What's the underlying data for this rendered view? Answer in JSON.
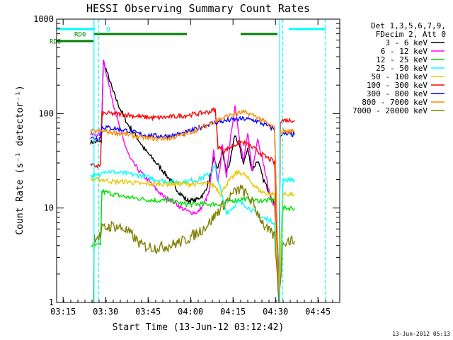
{
  "chart_data": {
    "type": "line",
    "title": "HESSI Observing Summary Count Rates",
    "xlabel": "Start Time (13-Jun-12 03:12:42)",
    "ylabel": "Count Rate (s⁻¹ detector⁻¹)",
    "y_scale": "log",
    "ylim": [
      1,
      1000
    ],
    "x_unit": "minutes since 03:12:42",
    "xlim": [
      0,
      100
    ],
    "x_ticks": [
      {
        "label": "03:15",
        "x": 2.3
      },
      {
        "label": "03:30",
        "x": 17.3
      },
      {
        "label": "03:45",
        "x": 32.3
      },
      {
        "label": "04:00",
        "x": 47.3
      },
      {
        "label": "04:15",
        "x": 62.3
      },
      {
        "label": "04:30",
        "x": 77.3
      },
      {
        "label": "04:45",
        "x": 92.3
      }
    ],
    "y_ticks": [
      {
        "label": "1",
        "y": 1
      },
      {
        "label": "10",
        "y": 10
      },
      {
        "label": "100",
        "y": 100
      },
      {
        "label": "1000",
        "y": 1000
      }
    ],
    "legend": {
      "position": "right",
      "header": [
        "Det 1,3,5,6,7,9,",
        "FDecim 2, Att 0"
      ]
    },
    "series": [
      {
        "name": "3 - 6 keV",
        "color": "#000000",
        "points": [
          [
            12,
            50
          ],
          [
            15.8,
            50
          ],
          [
            16.5,
            360
          ],
          [
            18,
            260
          ],
          [
            20,
            170
          ],
          [
            22,
            120
          ],
          [
            25,
            78
          ],
          [
            28,
            58
          ],
          [
            31,
            42
          ],
          [
            34,
            33
          ],
          [
            37,
            26
          ],
          [
            40,
            20
          ],
          [
            43,
            15
          ],
          [
            46,
            12
          ],
          [
            49,
            12
          ],
          [
            52,
            14
          ],
          [
            54,
            20
          ],
          [
            55.5,
            32
          ],
          [
            57,
            26
          ],
          [
            58.5,
            40
          ],
          [
            60,
            24
          ],
          [
            61.5,
            33
          ],
          [
            63,
            60
          ],
          [
            64.5,
            45
          ],
          [
            66,
            30
          ],
          [
            67.5,
            42
          ],
          [
            69,
            25
          ],
          [
            71,
            32
          ],
          [
            73,
            20
          ],
          [
            75,
            15
          ],
          [
            77.5,
            10
          ],
          [
            78.5,
            1
          ]
        ]
      },
      {
        "name": "6 - 12 keV",
        "color": "#ff00ff",
        "points": [
          [
            12,
            60
          ],
          [
            15.8,
            60
          ],
          [
            16.5,
            380
          ],
          [
            18,
            230
          ],
          [
            20,
            130
          ],
          [
            22,
            75
          ],
          [
            24,
            48
          ],
          [
            26,
            33
          ],
          [
            29,
            25
          ],
          [
            32,
            20
          ],
          [
            35,
            16
          ],
          [
            38,
            13
          ],
          [
            41,
            12
          ],
          [
            44,
            10
          ],
          [
            47,
            9
          ],
          [
            50,
            9
          ],
          [
            52,
            11
          ],
          [
            54,
            15
          ],
          [
            55.5,
            40
          ],
          [
            57,
            18
          ],
          [
            58.5,
            45
          ],
          [
            60,
            22
          ],
          [
            61.5,
            60
          ],
          [
            63,
            120
          ],
          [
            64.5,
            55
          ],
          [
            66,
            30
          ],
          [
            67.5,
            65
          ],
          [
            69,
            25
          ],
          [
            71,
            55
          ],
          [
            73,
            30
          ],
          [
            75,
            15
          ],
          [
            77,
            10
          ],
          [
            78.5,
            1
          ]
        ]
      },
      {
        "name": "12 - 25 keV",
        "color": "#00e000",
        "points": [
          [
            12,
            4
          ],
          [
            15.5,
            4
          ],
          [
            16,
            15
          ],
          [
            20,
            14
          ],
          [
            25,
            13
          ],
          [
            30,
            12.5
          ],
          [
            35,
            12
          ],
          [
            40,
            12
          ],
          [
            45,
            11
          ],
          [
            50,
            11
          ],
          [
            55,
            11
          ],
          [
            58,
            11
          ],
          [
            62,
            12
          ],
          [
            66,
            12.5
          ],
          [
            70,
            12
          ],
          [
            74,
            12
          ],
          [
            77,
            12.5
          ],
          [
            78.5,
            1
          ],
          [
            80,
            10
          ],
          [
            84,
            10
          ]
        ]
      },
      {
        "name": "25 - 50 keV",
        "color": "#00ffff",
        "points": [
          [
            12,
            22
          ],
          [
            15.5,
            22
          ],
          [
            16,
            25
          ],
          [
            20,
            24
          ],
          [
            25,
            23
          ],
          [
            30,
            22
          ],
          [
            35,
            20
          ],
          [
            40,
            19
          ],
          [
            45,
            19
          ],
          [
            50,
            20
          ],
          [
            54,
            23
          ],
          [
            56,
            28
          ],
          [
            58,
            15
          ],
          [
            60,
            9
          ],
          [
            62,
            10
          ],
          [
            64,
            11.5
          ],
          [
            66,
            11
          ],
          [
            68,
            10
          ],
          [
            70,
            9
          ],
          [
            72,
            8
          ],
          [
            75,
            7.5
          ],
          [
            77,
            7
          ],
          [
            78.5,
            1
          ],
          [
            80,
            20
          ],
          [
            84,
            20
          ]
        ]
      },
      {
        "name": "50 - 100 keV",
        "color": "#e8c800",
        "points": [
          [
            12,
            20
          ],
          [
            15.5,
            20
          ],
          [
            16,
            20
          ],
          [
            20,
            19
          ],
          [
            25,
            19
          ],
          [
            30,
            18
          ],
          [
            35,
            18
          ],
          [
            40,
            18
          ],
          [
            45,
            18
          ],
          [
            50,
            18
          ],
          [
            54,
            18
          ],
          [
            56,
            17
          ],
          [
            58,
            14
          ],
          [
            60,
            18
          ],
          [
            62,
            21
          ],
          [
            64,
            24
          ],
          [
            66,
            23
          ],
          [
            68,
            20
          ],
          [
            70,
            17
          ],
          [
            72,
            15
          ],
          [
            75,
            14
          ],
          [
            77,
            14
          ],
          [
            78.5,
            1
          ],
          [
            80,
            14
          ],
          [
            84,
            14
          ]
        ]
      },
      {
        "name": "100 - 300 keV",
        "color": "#ff0000",
        "points": [
          [
            12,
            28
          ],
          [
            15.5,
            28
          ],
          [
            16,
            100
          ],
          [
            20,
            100
          ],
          [
            25,
            97
          ],
          [
            30,
            92
          ],
          [
            35,
            90
          ],
          [
            40,
            92
          ],
          [
            45,
            95
          ],
          [
            50,
            100
          ],
          [
            54,
            105
          ],
          [
            56,
            110
          ],
          [
            57,
            45
          ],
          [
            59,
            40
          ],
          [
            62,
            45
          ],
          [
            65,
            50
          ],
          [
            67,
            48
          ],
          [
            70,
            42
          ],
          [
            73,
            36
          ],
          [
            76,
            32
          ],
          [
            77,
            30
          ],
          [
            78.5,
            1
          ],
          [
            79,
            85
          ],
          [
            84,
            85
          ]
        ]
      },
      {
        "name": "300 - 800 keV",
        "color": "#0000ff",
        "points": [
          [
            12,
            55
          ],
          [
            15.5,
            55
          ],
          [
            16,
            72
          ],
          [
            20,
            70
          ],
          [
            25,
            66
          ],
          [
            30,
            60
          ],
          [
            35,
            58
          ],
          [
            40,
            58
          ],
          [
            45,
            62
          ],
          [
            50,
            70
          ],
          [
            54,
            78
          ],
          [
            58,
            82
          ],
          [
            62,
            86
          ],
          [
            66,
            88
          ],
          [
            70,
            85
          ],
          [
            74,
            75
          ],
          [
            77,
            68
          ],
          [
            78.5,
            1
          ],
          [
            79,
            60
          ],
          [
            84,
            60
          ]
        ]
      },
      {
        "name": "800 - 7000 keV",
        "color": "#ff8800",
        "points": [
          [
            12,
            65
          ],
          [
            15.5,
            65
          ],
          [
            16,
            65
          ],
          [
            20,
            63
          ],
          [
            25,
            60
          ],
          [
            30,
            56
          ],
          [
            35,
            54
          ],
          [
            40,
            55
          ],
          [
            45,
            60
          ],
          [
            50,
            68
          ],
          [
            54,
            78
          ],
          [
            58,
            88
          ],
          [
            62,
            98
          ],
          [
            66,
            103
          ],
          [
            70,
            95
          ],
          [
            74,
            80
          ],
          [
            77,
            70
          ],
          [
            78.5,
            1
          ],
          [
            79,
            65
          ],
          [
            84,
            65
          ]
        ]
      },
      {
        "name": "7000 - 20000 keV",
        "color": "#808000",
        "points": [
          [
            12,
            1
          ],
          [
            13,
            1
          ],
          [
            13.3,
            5
          ],
          [
            15.5,
            5
          ],
          [
            16,
            6
          ],
          [
            20,
            6.5
          ],
          [
            24,
            6
          ],
          [
            27,
            5
          ],
          [
            30,
            4
          ],
          [
            35,
            3.8
          ],
          [
            40,
            4
          ],
          [
            45,
            4.5
          ],
          [
            50,
            5.5
          ],
          [
            54,
            7
          ],
          [
            58,
            10
          ],
          [
            62,
            14
          ],
          [
            65,
            16
          ],
          [
            68,
            13
          ],
          [
            71,
            9
          ],
          [
            74,
            6
          ],
          [
            77,
            5
          ],
          [
            78.5,
            1
          ],
          [
            80,
            4.5
          ],
          [
            84,
            4.5
          ]
        ]
      }
    ],
    "flags": [
      {
        "name": "RD0",
        "color": "#008000",
        "segments": [
          [
            13,
            46
          ],
          [
            65,
            78
          ]
        ]
      },
      {
        "name": "RD6",
        "color": "#008000",
        "segments": [
          [
            0,
            13
          ]
        ]
      },
      {
        "name": "N",
        "color": "#00ffff",
        "segments": [
          [
            0,
            13.5
          ],
          [
            82,
            95
          ]
        ]
      }
    ],
    "vlines": [
      {
        "x": 13.2,
        "style": "solid",
        "color": "#00ffff"
      },
      {
        "x": 14.8,
        "style": "dashed",
        "color": "#00ffff"
      },
      {
        "x": 78.8,
        "style": "solid",
        "color": "#00ffff"
      },
      {
        "x": 79.8,
        "style": "dashed",
        "color": "#00ffff"
      },
      {
        "x": 95,
        "style": "dashed",
        "color": "#00ffff"
      }
    ],
    "footer": "13-Jun-2012 05:13",
    "grid": false
  }
}
